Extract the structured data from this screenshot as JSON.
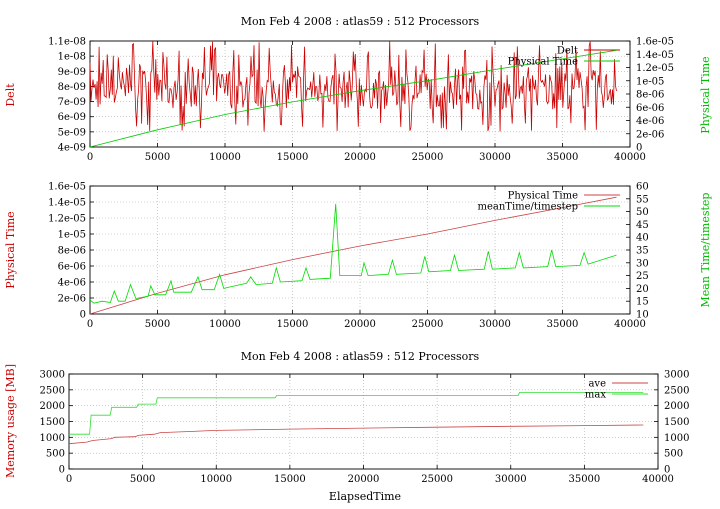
{
  "chart_data": [
    {
      "type": "line",
      "title": "Mon Feb 4 2008 : atlas59 : 512 Processors",
      "xlabel": "",
      "ylabel": "Delt",
      "y2label": "Physical Time",
      "xlim": [
        0,
        40000
      ],
      "ylim": [
        4e-09,
        1.1e-08
      ],
      "y2lim": [
        0,
        1.6e-05
      ],
      "x_ticks": [
        "0",
        "5000",
        "10000",
        "15000",
        "20000",
        "25000",
        "30000",
        "35000",
        "40000"
      ],
      "y_ticks": [
        "4e-09",
        "5e-09",
        "6e-09",
        "7e-09",
        "8e-09",
        "9e-09",
        "1e-08",
        "1.1e-08"
      ],
      "y2_ticks": [
        "0",
        "2e-06",
        "4e-06",
        "6e-06",
        "8e-06",
        "1e-05",
        "1.2e-05",
        "1.4e-05",
        "1.6e-05"
      ],
      "grid": true,
      "legend_position": "top-right",
      "series": [
        {
          "name": "Delt",
          "axis": "left",
          "color": "#cc0000",
          "x": [
            0,
            39000
          ],
          "values": [
            7.5e-09,
            7.5e-09
          ],
          "note_pattern": "noisy between 5e-09 and 1.1e-08"
        },
        {
          "name": "Physical Time",
          "axis": "right",
          "color": "#00cc00",
          "x": [
            0,
            5000,
            10000,
            15000,
            20000,
            25000,
            30000,
            35000,
            39000
          ],
          "values": [
            0,
            2.6e-06,
            4.9e-06,
            6.8e-06,
            8.5e-06,
            1e-05,
            1.17e-05,
            1.33e-05,
            1.46e-05
          ]
        }
      ]
    },
    {
      "type": "line",
      "title": "",
      "xlabel": "",
      "ylabel": "Physical Time",
      "y2label": "Mean Time/timestep",
      "xlim": [
        0,
        40000
      ],
      "ylim": [
        0,
        1.6e-05
      ],
      "y2lim": [
        10,
        60
      ],
      "x_ticks": [
        "0",
        "5000",
        "10000",
        "15000",
        "20000",
        "25000",
        "30000",
        "35000",
        "40000"
      ],
      "y_ticks": [
        "0",
        "2e-06",
        "4e-06",
        "6e-06",
        "8e-06",
        "1e-05",
        "1.2e-05",
        "1.4e-05",
        "1.6e-05"
      ],
      "y2_ticks": [
        "10",
        "15",
        "20",
        "25",
        "30",
        "35",
        "40",
        "45",
        "50",
        "55",
        "60"
      ],
      "grid": true,
      "legend_position": "top-right",
      "series": [
        {
          "name": "Physical Time",
          "axis": "left",
          "color": "#cc4444",
          "x": [
            0,
            5000,
            10000,
            15000,
            20000,
            25000,
            30000,
            35000,
            39000
          ],
          "values": [
            0,
            2.6e-06,
            4.9e-06,
            6.8e-06,
            8.5e-06,
            1e-05,
            1.17e-05,
            1.33e-05,
            1.46e-05
          ]
        },
        {
          "name": "meanTime/timestep",
          "axis": "right",
          "color": "#00dd00",
          "x": [
            0,
            300,
            900,
            1500,
            1800,
            2100,
            2600,
            3000,
            3400,
            4300,
            4500,
            4800,
            5600,
            6000,
            6200,
            6500,
            7500,
            8000,
            8300,
            9200,
            9600,
            9900,
            10300,
            11600,
            11900,
            12300,
            13500,
            13800,
            14100,
            15700,
            16000,
            16300,
            17800,
            18200,
            18500,
            20100,
            20300,
            20600,
            22100,
            22400,
            22700,
            24500,
            24800,
            25100,
            26700,
            27000,
            27300,
            29200,
            29500,
            29800,
            31500,
            31800,
            32100,
            33900,
            34200,
            34500,
            36300,
            36600,
            36900,
            39000
          ],
          "values": [
            15.5,
            14.2,
            15,
            14.5,
            19,
            15,
            15,
            21.5,
            16,
            17,
            21,
            17.5,
            17.5,
            23,
            18.5,
            18.5,
            18.5,
            24.5,
            19.5,
            19.5,
            25.5,
            20,
            20.5,
            22,
            24.5,
            21.5,
            22,
            28,
            22.5,
            23,
            28,
            23.5,
            24,
            53,
            25,
            25,
            30,
            25,
            25.5,
            31,
            25.5,
            26,
            32.5,
            26.5,
            27,
            33,
            27,
            27.5,
            34.5,
            27.5,
            28,
            34,
            28,
            28.5,
            35,
            28.5,
            29,
            34,
            29.5,
            33
          ]
        }
      ]
    },
    {
      "type": "line",
      "title": "Mon Feb 4 2008 : atlas59 : 512 Processors",
      "xlabel": "ElapsedTime",
      "ylabel": "Memory usage [MB]",
      "y2label": "",
      "xlim": [
        0,
        40000
      ],
      "ylim": [
        0,
        3000
      ],
      "y2lim": [
        0,
        3000
      ],
      "x_ticks": [
        "0",
        "5000",
        "10000",
        "15000",
        "20000",
        "25000",
        "30000",
        "35000",
        "40000"
      ],
      "y_ticks": [
        "0",
        "500",
        "1000",
        "1500",
        "2000",
        "2500",
        "3000"
      ],
      "y2_ticks": [
        "0",
        "500",
        "1000",
        "1500",
        "2000",
        "2500",
        "3000"
      ],
      "grid": true,
      "legend_position": "top-right",
      "series": [
        {
          "name": "ave",
          "axis": "left",
          "color": "#cc4444",
          "x": [
            0,
            1200,
            1600,
            2900,
            3100,
            4500,
            4700,
            5800,
            6200,
            8000,
            10000,
            15000,
            20000,
            25000,
            30000,
            35000,
            39000
          ],
          "values": [
            800,
            850,
            900,
            960,
            1000,
            1020,
            1060,
            1100,
            1150,
            1180,
            1220,
            1260,
            1290,
            1320,
            1350,
            1370,
            1390
          ]
        },
        {
          "name": "max",
          "axis": "left",
          "color": "#33dd33",
          "x": [
            0,
            1400,
            1500,
            2800,
            2900,
            4600,
            4700,
            5900,
            6000,
            14000,
            14100,
            30500,
            30600,
            39000
          ],
          "values": [
            1100,
            1100,
            1700,
            1700,
            1950,
            1950,
            2050,
            2050,
            2250,
            2250,
            2320,
            2320,
            2420,
            2420
          ]
        }
      ]
    }
  ]
}
